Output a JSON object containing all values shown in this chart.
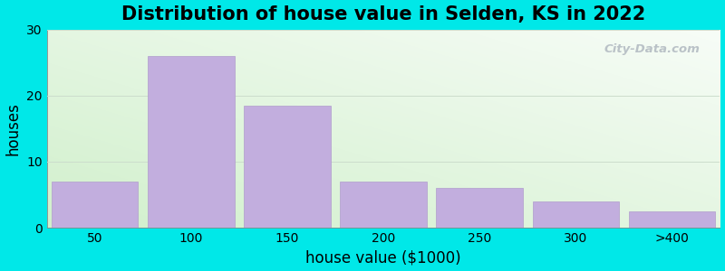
{
  "title": "Distribution of house value in Selden, KS in 2022",
  "xlabel": "house value ($1000)",
  "ylabel": "houses",
  "categories": [
    "50",
    "100",
    "150",
    "200",
    "250",
    "300",
    ">400"
  ],
  "values": [
    7,
    26,
    18.5,
    7,
    6,
    4,
    2.5
  ],
  "bar_color": "#c2aede",
  "bar_edge_color": "#b09dcc",
  "ylim": [
    0,
    30
  ],
  "yticks": [
    0,
    10,
    20,
    30
  ],
  "background_outer": "#00e8e8",
  "title_fontsize": 15,
  "axis_label_fontsize": 12,
  "tick_fontsize": 10,
  "watermark": "City-Data.com"
}
